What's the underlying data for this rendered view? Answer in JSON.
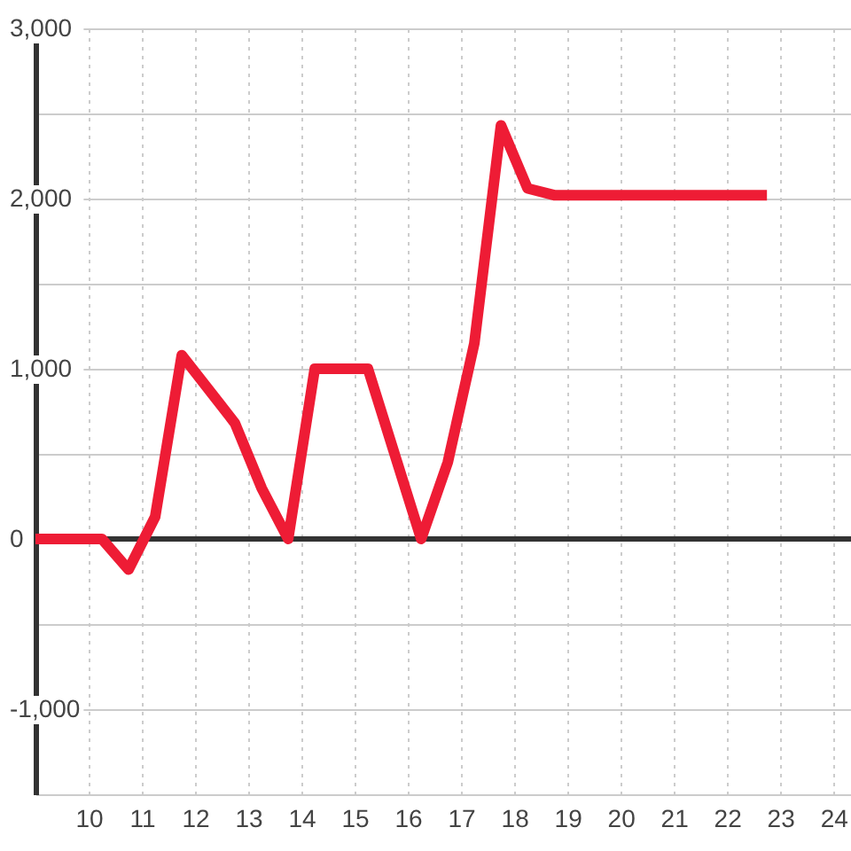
{
  "chart_data": {
    "type": "line",
    "x": [
      9,
      10.25,
      10.75,
      11.25,
      11.75,
      12.75,
      13.25,
      13.75,
      14.25,
      15.25,
      16.25,
      16.75,
      17.25,
      17.75,
      18.25,
      18.75,
      22.75
    ],
    "series": [
      {
        "color": "#ee1c35",
        "values": [
          0,
          0,
          -180,
          130,
          1080,
          680,
          300,
          0,
          1000,
          1000,
          0,
          450,
          1150,
          2430,
          2060,
          2020,
          2020
        ]
      }
    ],
    "xlim": [
      9,
      24.33
    ],
    "xticks": [
      10,
      11,
      12,
      13,
      14,
      15,
      16,
      17,
      18,
      19,
      20,
      21,
      22,
      23,
      24
    ],
    "ylim": [
      -1500,
      3000
    ],
    "yticks": [
      {
        "value": -1500,
        "label": null
      },
      {
        "value": -1000,
        "label": "-1,000"
      },
      {
        "value": -500,
        "label": null
      },
      {
        "value": 0,
        "label": "0"
      },
      {
        "value": 500,
        "label": null
      },
      {
        "value": 1000,
        "label": "1,000"
      },
      {
        "value": 1500,
        "label": null
      },
      {
        "value": 2000,
        "label": "2,000"
      },
      {
        "value": 2500,
        "label": null
      },
      {
        "value": 3000,
        "label": "3,000"
      }
    ],
    "ref_lines": [
      {
        "axis": "y",
        "value": 0,
        "color": "#333333"
      }
    ],
    "grid": true
  }
}
